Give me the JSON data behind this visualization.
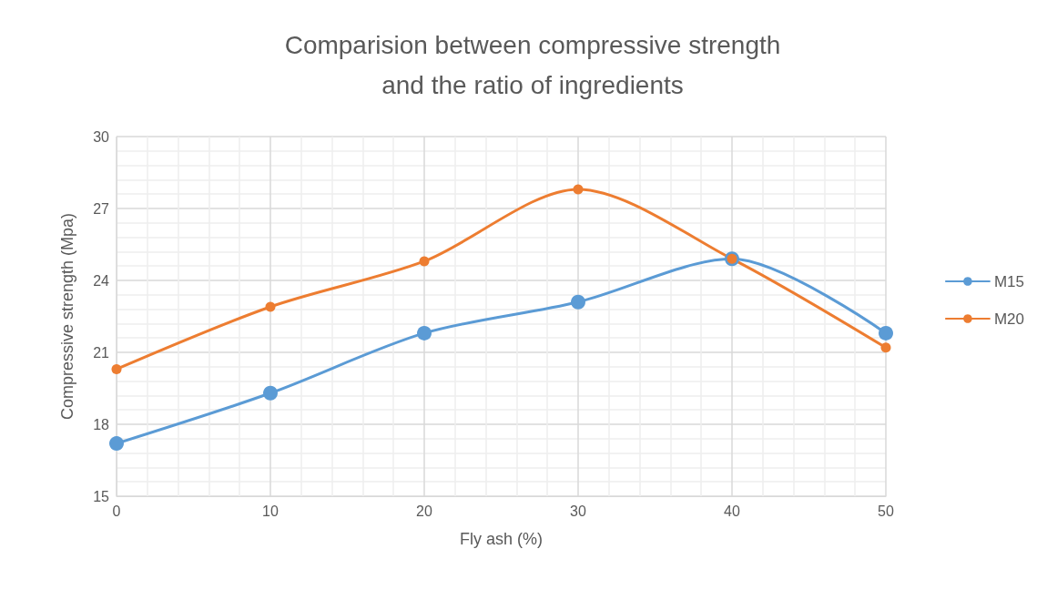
{
  "chart_data": {
    "type": "line",
    "title": "Comparision between compressive strength\nand the ratio of ingredients",
    "xlabel": "Fly ash (%)",
    "ylabel": "Compressive strength (Mpa)",
    "x": [
      0,
      10,
      20,
      30,
      40,
      50
    ],
    "series": [
      {
        "name": "M15",
        "color": "#5b9bd5",
        "values": [
          17.2,
          19.3,
          21.8,
          23.1,
          24.9,
          21.8
        ]
      },
      {
        "name": "M20",
        "color": "#ed7d31",
        "values": [
          20.3,
          22.9,
          24.8,
          27.8,
          24.9,
          21.2
        ]
      }
    ],
    "xlim": [
      0,
      50
    ],
    "xticks": [
      0,
      10,
      20,
      30,
      40,
      50
    ],
    "ylim": [
      15,
      30
    ],
    "yticks": [
      15,
      18,
      21,
      24,
      27,
      30
    ],
    "grid": true,
    "legend": "right",
    "marker": "circle",
    "line_style": "solid"
  }
}
